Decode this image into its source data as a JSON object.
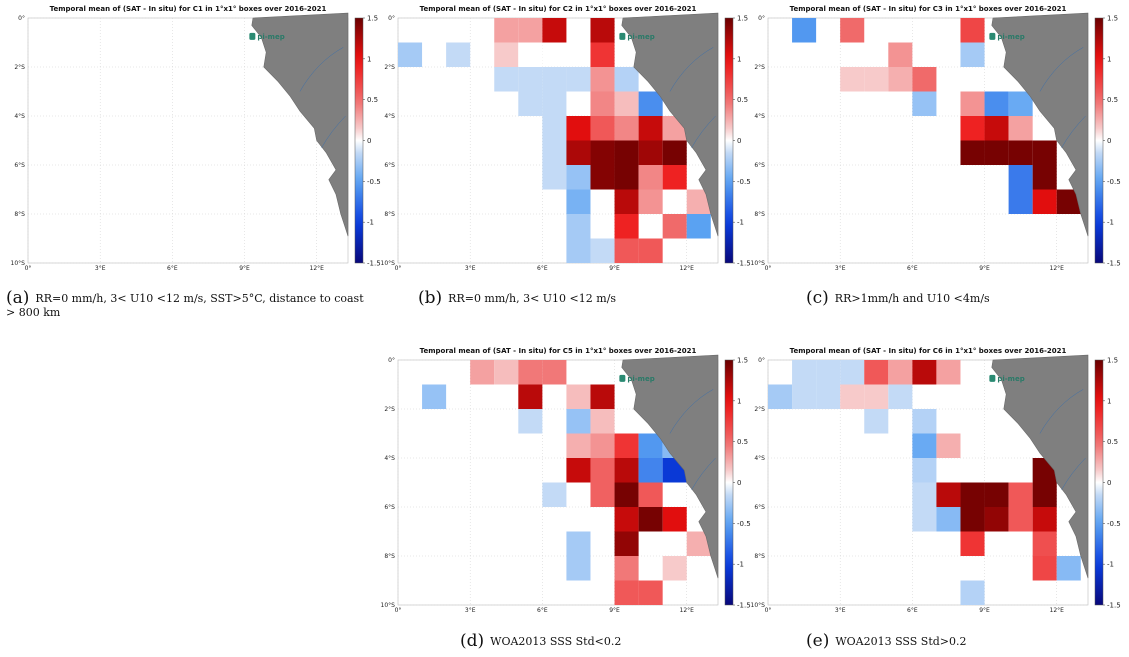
{
  "colorbar": {
    "ticks": [
      "1.5",
      "1",
      "0.5",
      "0",
      "-0.5",
      "-1",
      "-1.5"
    ]
  },
  "logo_text": "pi-mep",
  "colors": {
    "land": "#7f7f7f",
    "coast": "#6a6a6a",
    "river": "#3e6fa8"
  },
  "chart_data": [
    {
      "type": "heatmap",
      "title": "Temporal mean of (SAT - In situ) for C1 in 1°x1° boxes over 2016-2021",
      "xtick_labels": [
        "0°",
        "3°E",
        "6°E",
        "9°E",
        "12°E"
      ],
      "ytick_labels": [
        "0°",
        "2°S",
        "4°S",
        "6°S",
        "8°S",
        "10°S"
      ],
      "vlim": [
        -1.5,
        1.5
      ],
      "cells": []
    },
    {
      "type": "heatmap",
      "title": "Temporal mean of (SAT - In situ) for C2 in 1°x1° boxes over 2016-2021",
      "xtick_labels": [
        "0°",
        "3°E",
        "6°E",
        "9°E",
        "12°E"
      ],
      "ytick_labels": [
        "0°",
        "2°S",
        "4°S",
        "6°S",
        "8°S",
        "10°S"
      ],
      "vlim": [
        -1.5,
        1.5
      ],
      "cells": [
        [
          4,
          0,
          0.3
        ],
        [
          5,
          0,
          0.3
        ],
        [
          6,
          0,
          1.15
        ],
        [
          8,
          0,
          1.2
        ],
        [
          0,
          1,
          -0.25
        ],
        [
          2,
          1,
          -0.15
        ],
        [
          4,
          1,
          0.15
        ],
        [
          5,
          1,
          0.0
        ],
        [
          8,
          1,
          0.8
        ],
        [
          4,
          2,
          -0.15
        ],
        [
          5,
          2,
          -0.15
        ],
        [
          6,
          2,
          -0.15
        ],
        [
          7,
          2,
          -0.15
        ],
        [
          8,
          2,
          0.35
        ],
        [
          9,
          2,
          -0.2
        ],
        [
          5,
          3,
          -0.15
        ],
        [
          6,
          3,
          -0.15
        ],
        [
          8,
          3,
          0.4
        ],
        [
          9,
          3,
          0.2
        ],
        [
          10,
          3,
          -0.6
        ],
        [
          6,
          4,
          -0.15
        ],
        [
          7,
          4,
          1.05
        ],
        [
          8,
          4,
          0.6
        ],
        [
          9,
          4,
          0.4
        ],
        [
          10,
          4,
          1.15
        ],
        [
          11,
          4,
          0.3
        ],
        [
          6,
          5,
          -0.15
        ],
        [
          7,
          5,
          1.25
        ],
        [
          8,
          5,
          1.4
        ],
        [
          9,
          5,
          1.45
        ],
        [
          10,
          5,
          1.3
        ],
        [
          11,
          5,
          1.45
        ],
        [
          6,
          6,
          -0.15
        ],
        [
          7,
          6,
          -0.3
        ],
        [
          8,
          6,
          1.4
        ],
        [
          9,
          6,
          1.45
        ],
        [
          10,
          6,
          0.4
        ],
        [
          11,
          6,
          0.9
        ],
        [
          7,
          7,
          -0.4
        ],
        [
          9,
          7,
          1.2
        ],
        [
          10,
          7,
          0.35
        ],
        [
          12,
          7,
          0.25
        ],
        [
          7,
          8,
          -0.25
        ],
        [
          9,
          8,
          0.9
        ],
        [
          11,
          8,
          0.5
        ],
        [
          12,
          8,
          -0.5
        ],
        [
          7,
          9,
          -0.25
        ],
        [
          8,
          9,
          -0.15
        ],
        [
          9,
          9,
          0.6
        ],
        [
          10,
          9,
          0.6
        ]
      ]
    },
    {
      "type": "heatmap",
      "title": "Temporal mean of (SAT - In situ) for C3 in 1°x1° boxes over 2016-2021",
      "xtick_labels": [
        "0°",
        "3°E",
        "6°E",
        "9°E",
        "12°E"
      ],
      "ytick_labels": [
        "0°",
        "2°S",
        "4°S",
        "6°S",
        "8°S",
        "10°S"
      ],
      "vlim": [
        -1.5,
        1.5
      ],
      "cells": [
        [
          1,
          0,
          -0.55
        ],
        [
          3,
          0,
          0.5
        ],
        [
          8,
          0,
          0.7
        ],
        [
          5,
          1,
          0.35
        ],
        [
          8,
          1,
          -0.25
        ],
        [
          3,
          2,
          0.15
        ],
        [
          4,
          2,
          0.15
        ],
        [
          5,
          2,
          0.25
        ],
        [
          6,
          2,
          0.5
        ],
        [
          6,
          3,
          -0.3
        ],
        [
          8,
          3,
          0.35
        ],
        [
          9,
          3,
          -0.6
        ],
        [
          10,
          3,
          -0.45
        ],
        [
          8,
          4,
          0.9
        ],
        [
          9,
          4,
          1.15
        ],
        [
          10,
          4,
          0.3
        ],
        [
          8,
          5,
          1.45
        ],
        [
          9,
          5,
          1.45
        ],
        [
          10,
          5,
          1.45
        ],
        [
          11,
          5,
          1.45
        ],
        [
          10,
          6,
          -0.7
        ],
        [
          11,
          6,
          1.45
        ],
        [
          10,
          7,
          -0.7
        ],
        [
          11,
          7,
          1.05
        ],
        [
          12,
          7,
          1.45
        ]
      ]
    },
    {
      "type": "heatmap",
      "title": "Temporal mean of (SAT - In situ) for C5 in 1°x1° boxes over 2016-2021",
      "xtick_labels": [
        "0°",
        "3°E",
        "6°E",
        "9°E",
        "12°E"
      ],
      "ytick_labels": [
        "0°",
        "2°S",
        "4°S",
        "6°S",
        "8°S",
        "10°S"
      ],
      "vlim": [
        -1.5,
        1.5
      ],
      "cells": [
        [
          3,
          0,
          0.3
        ],
        [
          4,
          0,
          0.2
        ],
        [
          5,
          0,
          0.45
        ],
        [
          6,
          0,
          0.45
        ],
        [
          1,
          1,
          -0.3
        ],
        [
          5,
          1,
          1.2
        ],
        [
          7,
          1,
          0.2
        ],
        [
          8,
          1,
          1.2
        ],
        [
          5,
          2,
          -0.15
        ],
        [
          7,
          2,
          -0.3
        ],
        [
          8,
          2,
          0.2
        ],
        [
          7,
          3,
          0.25
        ],
        [
          8,
          3,
          0.35
        ],
        [
          9,
          3,
          0.8
        ],
        [
          10,
          3,
          -0.55
        ],
        [
          11,
          3,
          -0.35
        ],
        [
          7,
          4,
          1.15
        ],
        [
          8,
          4,
          0.55
        ],
        [
          9,
          4,
          1.2
        ],
        [
          10,
          4,
          -0.65
        ],
        [
          11,
          4,
          -1.05
        ],
        [
          6,
          5,
          -0.15
        ],
        [
          8,
          5,
          0.55
        ],
        [
          9,
          5,
          1.45
        ],
        [
          10,
          5,
          0.6
        ],
        [
          9,
          6,
          1.15
        ],
        [
          10,
          6,
          1.45
        ],
        [
          11,
          6,
          1.05
        ],
        [
          7,
          7,
          -0.25
        ],
        [
          9,
          7,
          1.35
        ],
        [
          12,
          7,
          0.25
        ],
        [
          7,
          8,
          -0.25
        ],
        [
          9,
          8,
          0.45
        ],
        [
          11,
          8,
          0.15
        ],
        [
          9,
          9,
          0.6
        ],
        [
          10,
          9,
          0.6
        ]
      ]
    },
    {
      "type": "heatmap",
      "title": "Temporal mean of (SAT - In situ) for C6 in 1°x1° boxes over 2016-2021",
      "xtick_labels": [
        "0°",
        "3°E",
        "6°E",
        "9°E",
        "12°E"
      ],
      "ytick_labels": [
        "0°",
        "2°S",
        "4°S",
        "6°S",
        "8°S",
        "10°S"
      ],
      "vlim": [
        -1.5,
        1.5
      ],
      "cells": [
        [
          1,
          0,
          -0.15
        ],
        [
          2,
          0,
          -0.15
        ],
        [
          3,
          0,
          -0.15
        ],
        [
          4,
          0,
          0.6
        ],
        [
          5,
          0,
          0.3
        ],
        [
          6,
          0,
          1.2
        ],
        [
          7,
          0,
          0.3
        ],
        [
          0,
          1,
          -0.25
        ],
        [
          1,
          1,
          -0.15
        ],
        [
          2,
          1,
          -0.15
        ],
        [
          3,
          1,
          0.15
        ],
        [
          4,
          1,
          0.15
        ],
        [
          5,
          1,
          -0.15
        ],
        [
          4,
          2,
          -0.15
        ],
        [
          6,
          2,
          -0.2
        ],
        [
          6,
          3,
          -0.45
        ],
        [
          7,
          3,
          0.25
        ],
        [
          6,
          4,
          -0.2
        ],
        [
          11,
          4,
          1.45
        ],
        [
          12,
          4,
          -0.7
        ],
        [
          6,
          5,
          -0.15
        ],
        [
          7,
          5,
          1.2
        ],
        [
          8,
          5,
          1.45
        ],
        [
          9,
          5,
          1.45
        ],
        [
          10,
          5,
          0.6
        ],
        [
          11,
          5,
          1.45
        ],
        [
          6,
          6,
          -0.15
        ],
        [
          7,
          6,
          -0.35
        ],
        [
          8,
          6,
          1.45
        ],
        [
          9,
          6,
          1.35
        ],
        [
          10,
          6,
          0.6
        ],
        [
          11,
          6,
          1.15
        ],
        [
          8,
          7,
          0.8
        ],
        [
          11,
          7,
          0.65
        ],
        [
          11,
          8,
          0.7
        ],
        [
          12,
          8,
          -0.35
        ],
        [
          8,
          9,
          -0.2
        ]
      ]
    }
  ],
  "captions": [
    {
      "label": "(a)",
      "text": "RR=0 mm/h, 3< U10 <12 m/s, SST>5°C, distance to coast > 800 km"
    },
    {
      "label": "(b)",
      "text": "RR=0 mm/h, 3< U10 <12 m/s"
    },
    {
      "label": "(c)",
      "text": "RR>1mm/h and U10 <4m/s"
    },
    {
      "label": "(d)",
      "text": "WOA2013 SSS Std<0.2"
    },
    {
      "label": "(e)",
      "text": "WOA2013 SSS Std>0.2"
    }
  ]
}
